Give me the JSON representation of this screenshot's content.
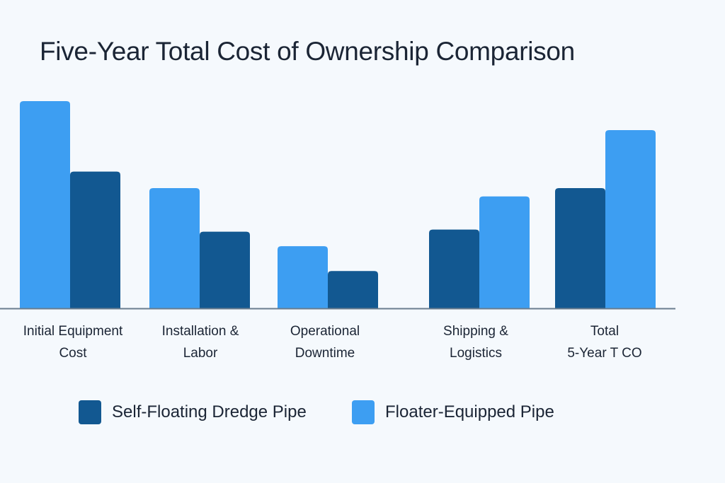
{
  "chart_data": {
    "type": "bar",
    "title": "Five-Year Total Cost of Ownership Comparison",
    "xlabel": "",
    "ylabel": "",
    "y_axis_visible": false,
    "grid": false,
    "value_units": "relative index (no axis scale shown; estimated from bar heights, tallest = 100)",
    "ylim": [
      0,
      100
    ],
    "legend_position": "bottom",
    "categories": [
      {
        "label_lines": [
          "Initial Equipment",
          "Cost"
        ],
        "order": [
          "floater",
          "self"
        ]
      },
      {
        "label_lines": [
          "Installation &",
          "Labor"
        ],
        "order": [
          "floater",
          "self"
        ]
      },
      {
        "label_lines": [
          "Operational",
          "Downtime"
        ],
        "order": [
          "floater",
          "self"
        ]
      },
      {
        "label_lines": [
          "Shipping &",
          "Logistics"
        ],
        "order": [
          "self",
          "floater"
        ]
      },
      {
        "label_lines": [
          "Total",
          "5-Year T CO"
        ],
        "order": [
          "self",
          "floater"
        ]
      }
    ],
    "series": [
      {
        "key": "self",
        "name": "Self-Floating Dredge Pipe",
        "color": "#125891",
        "values": [
          66,
          37,
          18,
          38,
          58
        ]
      },
      {
        "key": "floater",
        "name": "Floater-Equipped Pipe",
        "color": "#3d9ef2",
        "values": [
          100,
          58,
          30,
          54,
          86
        ]
      }
    ]
  },
  "colors": {
    "background": "#f5f9fd",
    "axis": "#6a7d8f",
    "text": "#1b2535"
  }
}
